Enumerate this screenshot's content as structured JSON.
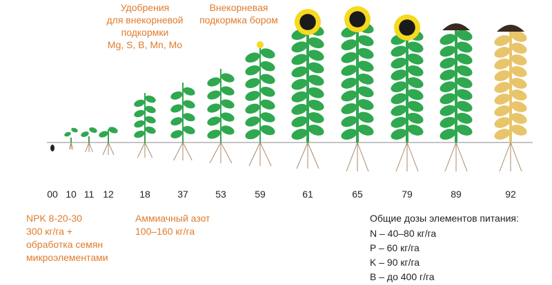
{
  "stages": [
    "00",
    "10",
    "11",
    "12",
    "18",
    "37",
    "53",
    "59",
    "61",
    "65",
    "79",
    "89",
    "92"
  ],
  "foliar_fertilizers": [
    "Удобрения",
    "для внекорневой",
    "подкормки",
    "Mg, S, B, Mn, Mo"
  ],
  "boron_foliar": [
    "Внекорневая",
    "подкормка бором"
  ],
  "npk": [
    "NPK 8-20-30",
    "300 кг/га +",
    "обработка семян",
    "микроэлементами"
  ],
  "ammonium_nitrogen": [
    "Аммиачный азот",
    "100–160 кг/га"
  ],
  "total_doses": {
    "title": "Общие дозы элементов питания:",
    "items": [
      "N – 40–80 кг/га",
      "P – 60 кг/га",
      "K – 90 кг/га",
      "B – до 400 г/га"
    ]
  }
}
